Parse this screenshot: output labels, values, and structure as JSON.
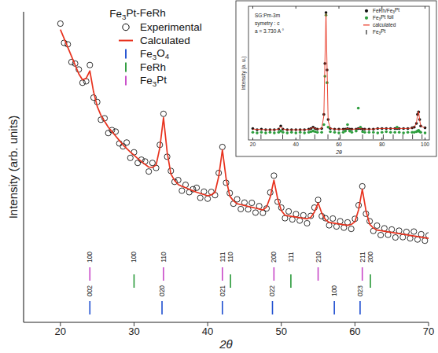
{
  "chart_data": [
    {
      "type": "scatter",
      "title": "Fe3Pt-FeRh",
      "x_label": "2θ",
      "y_label": "Intensity (arb. units)",
      "legend": "upper left",
      "tick_labels": "x",
      "xlim": [
        15,
        70
      ],
      "xticks": [
        20,
        30,
        40,
        50,
        60,
        70
      ],
      "ylim": [
        0,
        105
      ],
      "x": [
        20,
        20.5,
        21,
        21.5,
        22,
        22.5,
        23,
        23.5,
        24,
        24.5,
        25,
        25.5,
        26,
        26.5,
        27,
        27.5,
        28,
        28.5,
        29,
        29.5,
        30,
        30.5,
        31,
        31.5,
        32,
        32.5,
        33,
        33.5,
        34,
        34.5,
        35,
        35.5,
        36,
        36.5,
        37,
        37.5,
        38,
        38.5,
        39,
        39.5,
        40,
        40.5,
        41,
        41.5,
        42,
        42.5,
        43,
        43.5,
        44,
        44.5,
        45,
        45.5,
        46,
        46.5,
        47,
        47.5,
        48,
        48.5,
        49,
        49.5,
        50,
        50.5,
        51,
        51.5,
        52,
        52.5,
        53,
        53.5,
        54,
        54.5,
        55,
        55.5,
        56,
        56.5,
        57,
        57.5,
        58,
        58.5,
        59,
        59.5,
        60,
        60.5,
        61,
        61.5,
        62,
        62.5,
        63,
        63.5,
        64,
        64.5,
        65,
        65.5,
        66,
        66.5,
        67,
        67.5,
        68,
        68.5,
        69,
        69.5,
        70
      ],
      "series": [
        {
          "name": "Experimental",
          "type": "scatter",
          "marker": "open_circle",
          "color": "#000000",
          "values": [
            101,
            94.5,
            94,
            88,
            87.5,
            85.5,
            81,
            81.5,
            87,
            76,
            74.5,
            68.5,
            69,
            64,
            65,
            64.5,
            60.5,
            59.5,
            60.8,
            55.6,
            57.5,
            53.9,
            55,
            54.4,
            51,
            53.9,
            52.2,
            60,
            70.5,
            56,
            51.2,
            47.5,
            48.1,
            44.5,
            46.5,
            44,
            45,
            45.5,
            42.1,
            44.2,
            41.8,
            44.1,
            43,
            50.5,
            59.3,
            47.2,
            43.7,
            40.1,
            41.6,
            38.3,
            40.5,
            38.2,
            40.4,
            37.1,
            39.3,
            37,
            38.5,
            43.9,
            49.6,
            40.8,
            38.8,
            35.2,
            37.5,
            34.8,
            36.6,
            34.4,
            36.2,
            33.5,
            36,
            38.8,
            41.4,
            35.9,
            35.2,
            32.8,
            35.1,
            32.4,
            34.2,
            32,
            33.8,
            31.6,
            35,
            39.6,
            46,
            36.7,
            34.2,
            30.9,
            32.7,
            29.5,
            31.8,
            29.6,
            31.4,
            28.7,
            31,
            28.8,
            30.6,
            28.4,
            30.7,
            28,
            29.8,
            27.6,
            29.4
          ]
        },
        {
          "name": "Calculated",
          "type": "line",
          "line_style": "solid",
          "color": "#e8321e",
          "values": [
            99,
            96,
            93,
            90,
            87,
            84,
            82,
            82.5,
            85,
            78,
            73,
            70,
            68,
            66,
            64.5,
            63,
            61.5,
            60,
            58.8,
            57.6,
            56.5,
            55.4,
            54.4,
            53.4,
            52.5,
            52.4,
            53.2,
            59,
            69.2,
            57.5,
            50.2,
            48,
            46.6,
            46,
            45.5,
            45,
            44.5,
            44,
            43.6,
            43.2,
            42.8,
            43.1,
            44,
            49.3,
            58.3,
            48.7,
            42.7,
            41.1,
            40.1,
            39.8,
            39.5,
            39.2,
            38.9,
            38.6,
            38.3,
            38,
            39,
            42.4,
            48.1,
            41.8,
            37.8,
            36.2,
            36,
            35.8,
            35.6,
            35.4,
            35.2,
            35,
            35.5,
            37.3,
            40.4,
            36.9,
            34.7,
            33.8,
            33.6,
            33.4,
            33.2,
            33,
            32.8,
            33.1,
            34,
            38.1,
            45,
            37.7,
            33.2,
            31.9,
            31.2,
            31,
            30.8,
            30.6,
            30.4,
            30.2,
            30,
            29.8,
            29.6,
            29.4,
            29.2,
            29,
            28.8,
            28.6,
            28.4
          ]
        },
        {
          "name": "Fe3O4",
          "type": "tick",
          "color": "#1f4fd0",
          "x": [
            24.0,
            33.8,
            42.0,
            48.8,
            57.2,
            60.7
          ],
          "labels": [
            "002",
            "020",
            "021",
            "022",
            "100",
            "023"
          ]
        },
        {
          "name": "FeRh",
          "type": "tick",
          "color": "#2a9a3a",
          "x": [
            30.0,
            43.1,
            51.3,
            62.1
          ],
          "labels": [
            "100",
            "110",
            "111",
            "200"
          ]
        },
        {
          "name": "Fe3Pt",
          "type": "tick",
          "color": "#c848c8",
          "x": [
            24.0,
            34.0,
            42.0,
            49.0,
            55.0,
            61.0
          ],
          "labels": [
            "100",
            "110",
            "111",
            "200",
            "210",
            "211"
          ]
        }
      ]
    },
    {
      "type": "scatter",
      "x_label": "2θ",
      "y_label": "Intensity (a. u.)",
      "annotations": [
        "SG:Pm-3m",
        "symetry : c",
        "a = 3.730 A °"
      ],
      "legend": "upper right",
      "tick_labels": "x",
      "xlim": [
        18,
        102
      ],
      "xticks": [
        20,
        40,
        60,
        80,
        100
      ],
      "ylim": [
        0,
        105
      ],
      "x": [
        20,
        22,
        24,
        26,
        28,
        30,
        32,
        33,
        34,
        36,
        38,
        40,
        42,
        44,
        46,
        47,
        48,
        49,
        50,
        52,
        53,
        53.5,
        54,
        54.5,
        55,
        56,
        58,
        60,
        62,
        63,
        64,
        65,
        66,
        68,
        69,
        70,
        71,
        72,
        74,
        76,
        78,
        80,
        82,
        84,
        86,
        87,
        88,
        90,
        92,
        94,
        95,
        96,
        96.5,
        97,
        97.5,
        98,
        100
      ],
      "series": [
        {
          "name": "FeRh/Fe3Pt",
          "type": "scatter",
          "marker": "filled_circle",
          "color": "#111111",
          "values": [
            9,
            8,
            8.5,
            8,
            8,
            8,
            8.5,
            11,
            8.5,
            8,
            8,
            8,
            8,
            8,
            8.5,
            9,
            10,
            9,
            8.5,
            9,
            20,
            60,
            100,
            55,
            16,
            9,
            8.5,
            8.5,
            8.5,
            8.5,
            9,
            8.5,
            8.5,
            8.5,
            9,
            9,
            8.5,
            8.5,
            8.5,
            8.5,
            9,
            9,
            9,
            9,
            9,
            9,
            9,
            9,
            9,
            9.5,
            10,
            13,
            20,
            22,
            16,
            11,
            9.5
          ]
        },
        {
          "name": "Fe3Pt foil",
          "type": "scatter",
          "marker": "filled_circle",
          "color": "#2e9e3e",
          "values": [
            6,
            5.5,
            6,
            5.5,
            6,
            5.5,
            6,
            7,
            6,
            5.5,
            6,
            5.5,
            6,
            5.5,
            6,
            6.5,
            7,
            6.5,
            6,
            6,
            12,
            50,
            98,
            45,
            10,
            6.5,
            6,
            5.5,
            6,
            7,
            12,
            7,
            6,
            7,
            25,
            10,
            6.5,
            6,
            6,
            6,
            5.5,
            6,
            6.5,
            6,
            6,
            10,
            6,
            5.5,
            6,
            6,
            6,
            6.5,
            7,
            7.5,
            6.5,
            6,
            5.5
          ]
        },
        {
          "name": "calculated",
          "type": "line",
          "line_style": "solid",
          "color": "#e8321e",
          "values": [
            8.5,
            8.3,
            8.2,
            8.1,
            8,
            8,
            8.4,
            10.5,
            8.5,
            8,
            8,
            8,
            8,
            8,
            8.4,
            9,
            9.8,
            9,
            8.5,
            9,
            19,
            62,
            99,
            56,
            15,
            9,
            8.5,
            8.5,
            8.5,
            8.5,
            9,
            8.5,
            8.5,
            8.5,
            9,
            9,
            8.5,
            8.5,
            8.5,
            8.5,
            9,
            9,
            9,
            9,
            9,
            9,
            9,
            9,
            9,
            9.4,
            10,
            13.5,
            19.5,
            22.5,
            15.5,
            11,
            9.4
          ]
        },
        {
          "name": "Fe3Pt",
          "type": "tick",
          "color": "#111111",
          "x": [
            23.8,
            33.9,
            41.9,
            48.8,
            54.9,
            60.6,
            71.0,
            75.9,
            80.6,
            85.2,
            89.7,
            94.2,
            98.6
          ]
        }
      ]
    }
  ]
}
